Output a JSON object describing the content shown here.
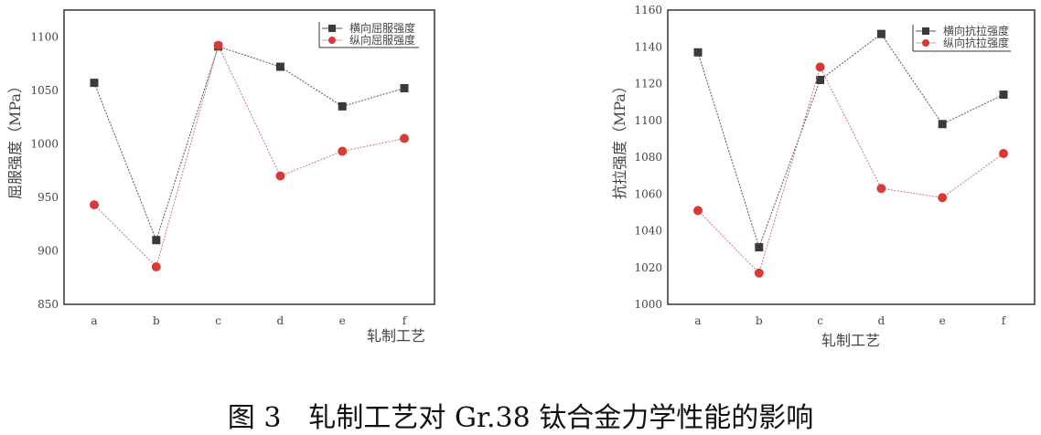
{
  "caption": "图 3　轧制工艺对  Gr.38 钛合金力学性能的影响",
  "chart_data": [
    {
      "type": "line",
      "categories": [
        "a",
        "b",
        "c",
        "d",
        "e",
        "f"
      ],
      "xlabel": "轧制工艺",
      "ylabel": "屈服强度（MPa）",
      "ylim": [
        850,
        1125
      ],
      "yticks": [
        850,
        900,
        950,
        1000,
        1050,
        1100
      ],
      "grid": false,
      "legend": "top-right",
      "series": [
        {
          "name": "横向屈服强度",
          "marker": "square",
          "color": "#3a3a3a",
          "values": [
            1057,
            910,
            1091,
            1072,
            1035,
            1052
          ]
        },
        {
          "name": "纵向屈服强度",
          "marker": "circle",
          "color": "#d83a3a",
          "values": [
            943,
            885,
            1092,
            970,
            993,
            1005
          ]
        }
      ]
    },
    {
      "type": "line",
      "categories": [
        "a",
        "b",
        "c",
        "d",
        "e",
        "f"
      ],
      "xlabel": "轧制工艺",
      "ylabel": "抗拉强度（MPa）",
      "ylim": [
        1000,
        1160
      ],
      "yticks": [
        1000,
        1020,
        1040,
        1060,
        1080,
        1100,
        1120,
        1140,
        1160
      ],
      "grid": false,
      "legend": "top-right",
      "series": [
        {
          "name": "横向抗拉强度",
          "marker": "square",
          "color": "#3a3a3a",
          "values": [
            1137,
            1031,
            1122,
            1147,
            1098,
            1114
          ]
        },
        {
          "name": "纵向抗拉强度",
          "marker": "circle",
          "color": "#d83a3a",
          "values": [
            1051,
            1017,
            1129,
            1063,
            1058,
            1082
          ]
        }
      ]
    }
  ]
}
